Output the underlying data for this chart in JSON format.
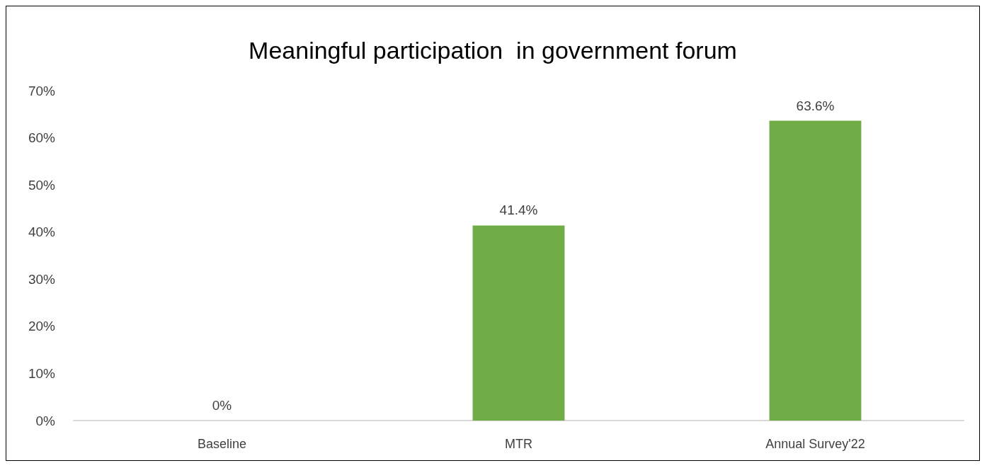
{
  "chart_data": {
    "type": "bar",
    "title": "Meaningful participation  in government forum",
    "categories": [
      "Baseline",
      "MTR",
      "Annual Survey'22"
    ],
    "values": [
      0,
      41.4,
      63.6
    ],
    "color": "#70ad47",
    "value_labels": [
      "0%",
      "41.4%",
      "63.6%"
    ],
    "ylim": [
      0,
      70
    ],
    "yticks": [
      {
        "value": 0,
        "label": "0%"
      },
      {
        "value": 10,
        "label": "10%"
      },
      {
        "value": 20,
        "label": "20%"
      },
      {
        "value": 30,
        "label": "30%"
      },
      {
        "value": 40,
        "label": "40%"
      },
      {
        "value": 50,
        "label": "50%"
      },
      {
        "value": 60,
        "label": "60%"
      },
      {
        "value": 70,
        "label": "70%"
      }
    ],
    "grid": false
  }
}
